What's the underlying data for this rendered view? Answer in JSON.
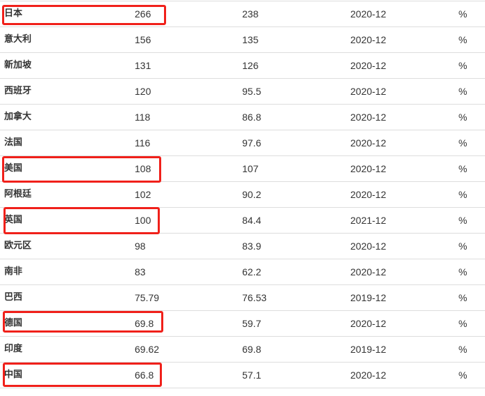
{
  "table": {
    "rows": [
      {
        "name": "日本",
        "value": "266",
        "previous": "238",
        "date": "2020-12",
        "unit": "%",
        "highlighted": true
      },
      {
        "name": "意大利",
        "value": "156",
        "previous": "135",
        "date": "2020-12",
        "unit": "%",
        "highlighted": false
      },
      {
        "name": "新加坡",
        "value": "131",
        "previous": "126",
        "date": "2020-12",
        "unit": "%",
        "highlighted": false
      },
      {
        "name": "西班牙",
        "value": "120",
        "previous": "95.5",
        "date": "2020-12",
        "unit": "%",
        "highlighted": false
      },
      {
        "name": "加拿大",
        "value": "118",
        "previous": "86.8",
        "date": "2020-12",
        "unit": "%",
        "highlighted": false
      },
      {
        "name": "法国",
        "value": "116",
        "previous": "97.6",
        "date": "2020-12",
        "unit": "%",
        "highlighted": false
      },
      {
        "name": "美国",
        "value": "108",
        "previous": "107",
        "date": "2020-12",
        "unit": "%",
        "highlighted": true
      },
      {
        "name": "阿根廷",
        "value": "102",
        "previous": "90.2",
        "date": "2020-12",
        "unit": "%",
        "highlighted": false
      },
      {
        "name": "英国",
        "value": "100",
        "previous": "84.4",
        "date": "2021-12",
        "unit": "%",
        "highlighted": true
      },
      {
        "name": "欧元区",
        "value": "98",
        "previous": "83.9",
        "date": "2020-12",
        "unit": "%",
        "highlighted": false
      },
      {
        "name": "南非",
        "value": "83",
        "previous": "62.2",
        "date": "2020-12",
        "unit": "%",
        "highlighted": false
      },
      {
        "name": "巴西",
        "value": "75.79",
        "previous": "76.53",
        "date": "2019-12",
        "unit": "%",
        "highlighted": false
      },
      {
        "name": "德国",
        "value": "69.8",
        "previous": "59.7",
        "date": "2020-12",
        "unit": "%",
        "highlighted": true
      },
      {
        "name": "印度",
        "value": "69.62",
        "previous": "69.8",
        "date": "2019-12",
        "unit": "%",
        "highlighted": false
      },
      {
        "name": "中国",
        "value": "66.8",
        "previous": "57.1",
        "date": "2020-12",
        "unit": "%",
        "highlighted": true
      }
    ]
  },
  "highlight_color": "#f0201a"
}
